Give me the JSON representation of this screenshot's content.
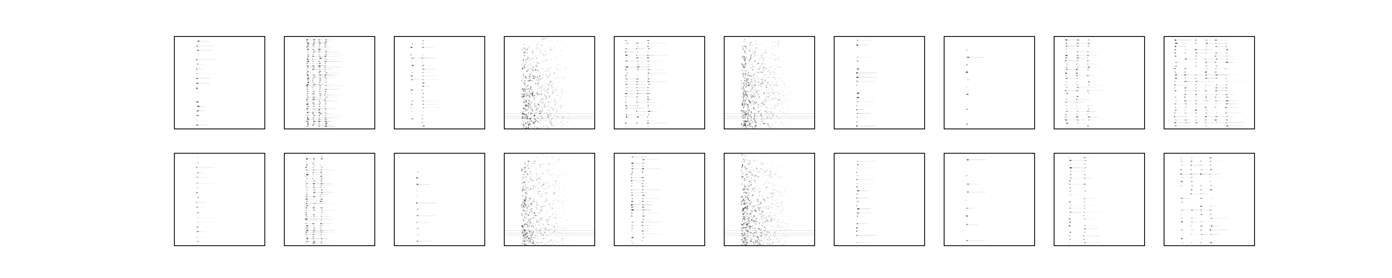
{
  "figure": {
    "background": "#ffffff",
    "rows": 2,
    "cols": 10,
    "axis_color": "#000000",
    "mark_color": "#000000"
  },
  "chart_data": {
    "type": "heatmap",
    "colormap": "gray_r",
    "ticks_visible": false,
    "panels": [
      {
        "row": 0,
        "col": 0,
        "pattern": "column-peaks",
        "center": 0.25,
        "spread": 0.04,
        "lanes": 1,
        "stripes": 19,
        "density": 0.55
      },
      {
        "row": 0,
        "col": 1,
        "pattern": "column-peaks",
        "center": 0.35,
        "spread": 0.1,
        "lanes": 4,
        "stripes": 48,
        "density": 0.6
      },
      {
        "row": 0,
        "col": 2,
        "pattern": "column-peaks",
        "center": 0.25,
        "spread": 0.06,
        "lanes": 2,
        "stripes": 25,
        "density": 0.45
      },
      {
        "row": 0,
        "col": 3,
        "pattern": "noisy-band",
        "center": 0.22,
        "spread": 0.06,
        "lanes": 1,
        "stripes": 0,
        "density": 0.7
      },
      {
        "row": 0,
        "col": 4,
        "pattern": "column-peaks",
        "center": 0.25,
        "spread": 0.12,
        "lanes": 3,
        "stripes": 30,
        "density": 0.5
      },
      {
        "row": 0,
        "col": 5,
        "pattern": "noisy-band",
        "center": 0.22,
        "spread": 0.08,
        "lanes": 1,
        "stripes": 0,
        "density": 0.85
      },
      {
        "row": 0,
        "col": 6,
        "pattern": "column-peaks",
        "center": 0.25,
        "spread": 0.03,
        "lanes": 1,
        "stripes": 22,
        "density": 0.45
      },
      {
        "row": 0,
        "col": 7,
        "pattern": "column-peaks",
        "center": 0.25,
        "spread": 0.03,
        "lanes": 1,
        "stripes": 12,
        "density": 0.4
      },
      {
        "row": 0,
        "col": 8,
        "pattern": "column-peaks",
        "center": 0.25,
        "spread": 0.12,
        "lanes": 3,
        "stripes": 30,
        "density": 0.55
      },
      {
        "row": 0,
        "col": 9,
        "pattern": "column-peaks",
        "center": 0.4,
        "spread": 0.28,
        "lanes": 6,
        "stripes": 28,
        "density": 0.5
      },
      {
        "row": 1,
        "col": 0,
        "pattern": "column-peaks",
        "center": 0.25,
        "spread": 0.04,
        "lanes": 1,
        "stripes": 18,
        "density": 0.55
      },
      {
        "row": 1,
        "col": 1,
        "pattern": "column-peaks",
        "center": 0.32,
        "spread": 0.08,
        "lanes": 3,
        "stripes": 40,
        "density": 0.55
      },
      {
        "row": 1,
        "col": 2,
        "pattern": "column-peaks",
        "center": 0.25,
        "spread": 0.03,
        "lanes": 1,
        "stripes": 14,
        "density": 0.45
      },
      {
        "row": 1,
        "col": 3,
        "pattern": "noisy-band",
        "center": 0.22,
        "spread": 0.06,
        "lanes": 1,
        "stripes": 0,
        "density": 0.65
      },
      {
        "row": 1,
        "col": 4,
        "pattern": "column-peaks",
        "center": 0.25,
        "spread": 0.06,
        "lanes": 2,
        "stripes": 30,
        "density": 0.55
      },
      {
        "row": 1,
        "col": 5,
        "pattern": "noisy-band",
        "center": 0.22,
        "spread": 0.08,
        "lanes": 1,
        "stripes": 0,
        "density": 0.85
      },
      {
        "row": 1,
        "col": 6,
        "pattern": "column-peaks",
        "center": 0.25,
        "spread": 0.03,
        "lanes": 1,
        "stripes": 24,
        "density": 0.45
      },
      {
        "row": 1,
        "col": 7,
        "pattern": "column-peaks",
        "center": 0.25,
        "spread": 0.03,
        "lanes": 1,
        "stripes": 11,
        "density": 0.4
      },
      {
        "row": 1,
        "col": 8,
        "pattern": "column-peaks",
        "center": 0.25,
        "spread": 0.08,
        "lanes": 2,
        "stripes": 26,
        "density": 0.5
      },
      {
        "row": 1,
        "col": 9,
        "pattern": "column-peaks",
        "center": 0.35,
        "spread": 0.16,
        "lanes": 4,
        "stripes": 22,
        "density": 0.45
      }
    ]
  }
}
